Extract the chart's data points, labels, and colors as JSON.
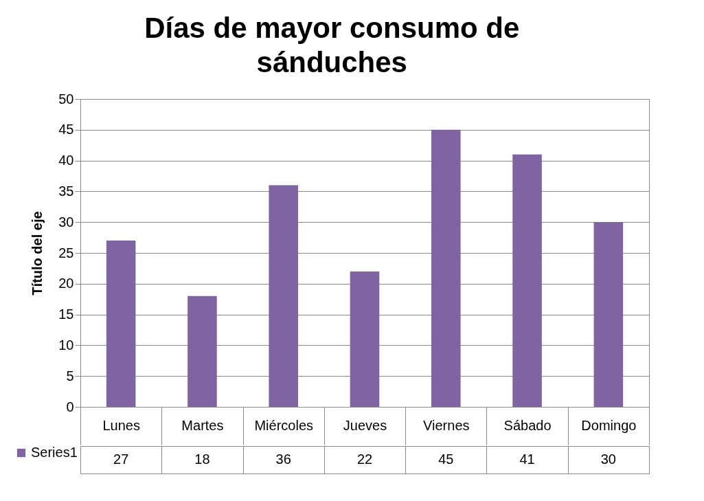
{
  "chart_data": {
    "type": "bar",
    "title": "Días de mayor consumo de sánduches",
    "ylabel": "Título del eje",
    "categories": [
      "Lunes",
      "Martes",
      "Miércoles",
      "Jueves",
      "Viernes",
      "Sábado",
      "Domingo"
    ],
    "series": [
      {
        "name": "Series1",
        "color": "#8064a2",
        "values": [
          27,
          18,
          36,
          22,
          45,
          41,
          30
        ]
      }
    ],
    "ylim": [
      0,
      50
    ],
    "yticks": [
      0,
      5,
      10,
      15,
      20,
      25,
      30,
      35,
      40,
      45,
      50
    ],
    "grid": "y",
    "legend": "bottom",
    "data_labels": true
  }
}
